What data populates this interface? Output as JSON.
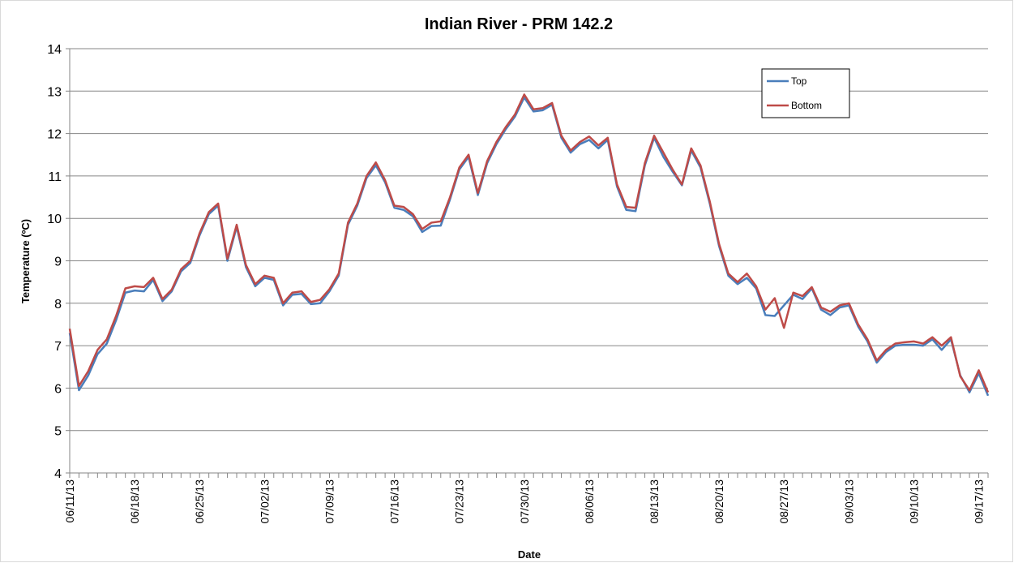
{
  "chart_data": {
    "type": "line",
    "title": "Indian River - PRM 142.2",
    "x_label": "Date",
    "y_label": "Temperature (ºC)",
    "categories": [
      "06/11/13",
      null,
      null,
      null,
      null,
      null,
      null,
      "06/18/13",
      null,
      null,
      null,
      null,
      null,
      null,
      "06/25/13",
      null,
      null,
      null,
      null,
      null,
      null,
      "07/02/13",
      null,
      null,
      null,
      null,
      null,
      null,
      "07/09/13",
      null,
      null,
      null,
      null,
      null,
      null,
      "07/16/13",
      null,
      null,
      null,
      null,
      null,
      null,
      "07/23/13",
      null,
      null,
      null,
      null,
      null,
      null,
      "07/30/13",
      null,
      null,
      null,
      null,
      null,
      null,
      "08/06/13",
      null,
      null,
      null,
      null,
      null,
      null,
      "08/13/13",
      null,
      null,
      null,
      null,
      null,
      null,
      "08/20/13",
      null,
      null,
      null,
      null,
      null,
      null,
      "08/27/13",
      null,
      null,
      null,
      null,
      null,
      null,
      "09/03/13",
      null,
      null,
      null,
      null,
      null,
      null,
      "09/10/13",
      null,
      null,
      null,
      null,
      null,
      null,
      "09/17/13",
      null
    ],
    "series": [
      {
        "name": "Top",
        "color": "#4a7ebb",
        "values": [
          7.3,
          5.95,
          6.3,
          6.8,
          7.05,
          7.6,
          8.25,
          8.3,
          8.28,
          8.55,
          8.05,
          8.28,
          8.75,
          8.95,
          9.6,
          10.1,
          10.3,
          9.0,
          9.8,
          8.85,
          8.4,
          8.6,
          8.55,
          7.95,
          8.2,
          8.22,
          7.98,
          8.0,
          8.28,
          8.65,
          9.85,
          10.3,
          10.95,
          11.25,
          10.85,
          10.25,
          10.2,
          10.05,
          9.68,
          9.82,
          9.83,
          10.45,
          11.15,
          11.45,
          10.55,
          11.3,
          11.75,
          12.1,
          12.4,
          12.85,
          12.52,
          12.55,
          12.68,
          11.9,
          11.55,
          11.75,
          11.85,
          11.65,
          11.85,
          10.75,
          10.2,
          10.17,
          11.25,
          11.9,
          11.45,
          11.1,
          10.78,
          11.6,
          11.2,
          10.35,
          9.35,
          8.65,
          8.45,
          8.6,
          8.35,
          7.72,
          7.7,
          7.95,
          8.2,
          8.1,
          8.35,
          7.85,
          7.72,
          7.9,
          7.95,
          7.45,
          7.1,
          6.6,
          6.85,
          7.0,
          7.02,
          7.02,
          7.0,
          7.15,
          6.9,
          7.15,
          6.3,
          5.9,
          6.35,
          5.82
        ]
      },
      {
        "name": "Bottom",
        "color": "#be4b48",
        "values": [
          7.4,
          6.05,
          6.4,
          6.9,
          7.15,
          7.7,
          8.35,
          8.4,
          8.38,
          8.6,
          8.1,
          8.32,
          8.8,
          9.0,
          9.65,
          10.15,
          10.35,
          9.05,
          9.85,
          8.9,
          8.45,
          8.65,
          8.6,
          8.0,
          8.25,
          8.28,
          8.03,
          8.08,
          8.33,
          8.7,
          9.9,
          10.35,
          11.0,
          11.32,
          10.9,
          10.3,
          10.27,
          10.1,
          9.75,
          9.9,
          9.93,
          10.5,
          11.2,
          11.5,
          10.6,
          11.35,
          11.8,
          12.15,
          12.45,
          12.92,
          12.57,
          12.6,
          12.72,
          11.95,
          11.6,
          11.8,
          11.93,
          11.72,
          11.9,
          10.8,
          10.27,
          10.25,
          11.3,
          11.95,
          11.55,
          11.15,
          10.8,
          11.65,
          11.25,
          10.4,
          9.4,
          8.7,
          8.5,
          8.7,
          8.4,
          7.85,
          8.12,
          7.42,
          8.25,
          8.17,
          8.38,
          7.9,
          7.8,
          7.95,
          8.0,
          7.5,
          7.15,
          6.65,
          6.9,
          7.05,
          7.08,
          7.1,
          7.05,
          7.2,
          7.0,
          7.2,
          6.28,
          5.95,
          6.42,
          5.9
        ]
      }
    ],
    "ylim": [
      4,
      14
    ],
    "yticks": [
      4,
      5,
      6,
      7,
      8,
      9,
      10,
      11,
      12,
      13,
      14
    ],
    "grid": true,
    "legend": "upper right"
  }
}
